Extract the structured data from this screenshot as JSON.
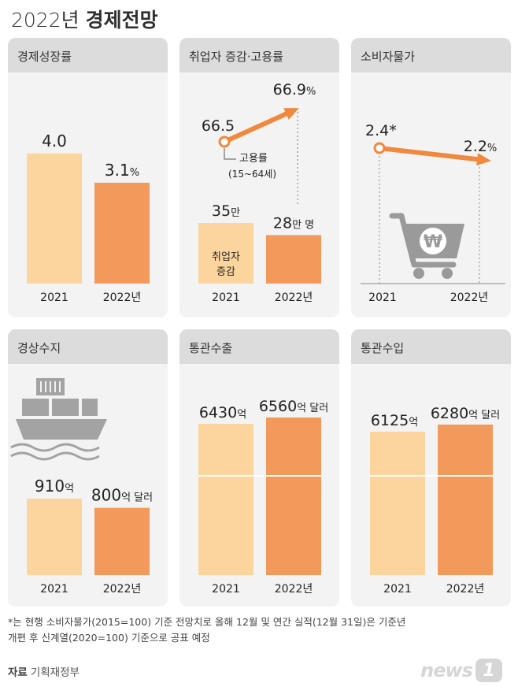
{
  "page": {
    "title_year": "2022년",
    "title_bold": "경제전망",
    "footnote_line1": "*는 현행 소비자물가(2015=100) 기준 전망치로 올해 12월 및 연간 실적(12월 31일)은 기준년",
    "footnote_line2": "개편 후 신계열(2020=100) 기준으로 공표 예정",
    "source_label": "자료",
    "source_value": "기획재정부",
    "logo_text": "news",
    "logo_badge": "1"
  },
  "colors": {
    "bar_2021": "#fcd59e",
    "bar_2022": "#f29a5c",
    "arrow": "#f0883e",
    "panel_bg": "#f3f3f3",
    "header_bg": "#dcdcdc"
  },
  "chart_data": [
    {
      "type": "bar",
      "title": "경제성장률",
      "categories": [
        "2021",
        "2022년"
      ],
      "values": [
        4.0,
        3.1
      ],
      "value_labels": [
        "4.0",
        "3.1"
      ],
      "unit": "%",
      "ylim": [
        0,
        4.6
      ]
    },
    {
      "type": "bar",
      "title": "취업자 증감·고용률",
      "categories": [
        "2021",
        "2022년"
      ],
      "values": [
        35,
        28
      ],
      "value_labels": [
        "35",
        "28"
      ],
      "value_units": [
        "만",
        "만 명"
      ],
      "bar_label": "취업자\n증감",
      "line_series": {
        "name": "고용률\n(15~64세)",
        "values": [
          66.5,
          66.9
        ],
        "value_labels": [
          "66.5",
          "66.9"
        ],
        "unit": "%"
      }
    },
    {
      "type": "line",
      "title": "소비자물가",
      "categories": [
        "2021",
        "2022년"
      ],
      "values": [
        2.4,
        2.2
      ],
      "value_labels": [
        "2.4*",
        "2.2"
      ],
      "unit": "%",
      "icon": "shopping-cart-won-icon",
      "icon_symbol": "₩"
    },
    {
      "type": "bar",
      "title": "경상수지",
      "categories": [
        "2021",
        "2022년"
      ],
      "values": [
        910,
        800
      ],
      "value_labels": [
        "910",
        "800"
      ],
      "value_units": [
        "억",
        "억 달러"
      ],
      "icon": "cargo-ship-icon",
      "ylim": [
        0,
        1500
      ]
    },
    {
      "type": "bar",
      "title": "통관수출",
      "categories": [
        "2021",
        "2022년"
      ],
      "values": [
        6430,
        6560
      ],
      "value_labels": [
        "6430",
        "6560"
      ],
      "value_units": [
        "억",
        "억 달러"
      ],
      "axis_break": true
    },
    {
      "type": "bar",
      "title": "통관수입",
      "categories": [
        "2021",
        "2022년"
      ],
      "values": [
        6125,
        6280
      ],
      "value_labels": [
        "6125",
        "6280"
      ],
      "value_units": [
        "억",
        "억 달러"
      ],
      "axis_break": true
    }
  ]
}
